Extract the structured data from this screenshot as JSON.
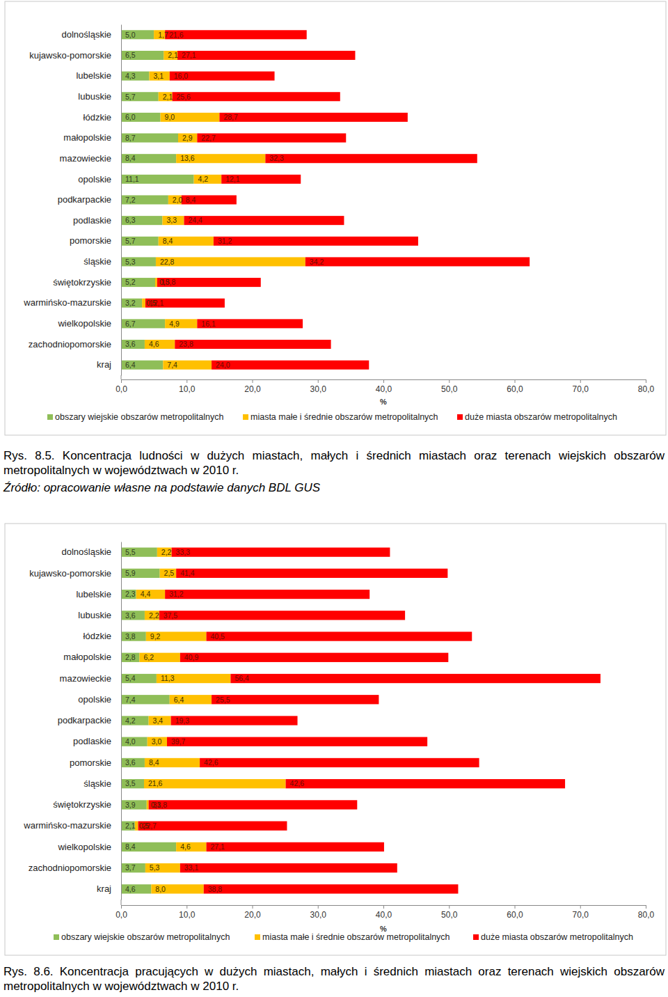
{
  "chart_data": [
    {
      "type": "bar",
      "orientation": "horizontal",
      "stacked": true,
      "data_labels": true,
      "grid": false,
      "legend": "bottom",
      "title": "Rys. 8.5. Koncentracja ludności w dużych miastach, małych i średnich miastach oraz terenach wiejskich obszarów metropolitalnych w województwach w 2010 r.",
      "subtitle": "Źródło: opracowanie własne na podstawie danych BDL GUS",
      "x_label": "%",
      "categories": [
        "dolnośląskie",
        "kujawsko-pomorskie",
        "lubelskie",
        "lubuskie",
        "łódzkie",
        "małopolskie",
        "mazowieckie",
        "opolskie",
        "podkarpackie",
        "podlaskie",
        "pomorskie",
        "śląskie",
        "świętokrzyskie",
        "warmińsko-mazurskie",
        "wielkopolskie",
        "zachodniopomorskie",
        "kraj"
      ],
      "xlim": [
        0,
        80
      ],
      "xticks": [
        {
          "value": 0,
          "label": "0,0"
        },
        {
          "value": 10,
          "label": "10,0"
        },
        {
          "value": 20,
          "label": "20,0"
        },
        {
          "value": 30,
          "label": "30,0"
        },
        {
          "value": 40,
          "label": "40,0"
        },
        {
          "value": 50,
          "label": "50,0"
        },
        {
          "value": 60,
          "label": "60,0"
        },
        {
          "value": 70,
          "label": "70,0"
        },
        {
          "value": 80,
          "label": "80,0"
        }
      ],
      "series": [
        {
          "name": "obszary wiejskie obszarów metropolitalnych",
          "color": "#8fbe58",
          "values": [
            5.0,
            6.5,
            4.3,
            5.7,
            6.0,
            8.7,
            8.4,
            11.1,
            7.2,
            6.3,
            5.7,
            5.3,
            5.2,
            3.2,
            6.7,
            3.6,
            6.4
          ],
          "value_labels": [
            "5,0",
            "6,5",
            "4,3",
            "5,7",
            "6,0",
            "8,7",
            "8,4",
            "11,1",
            "7,2",
            "6,3",
            "5,7",
            "5,3",
            "5,2",
            "3,2",
            "6,7",
            "3,6",
            "6,4"
          ]
        },
        {
          "name": "miasta małe i średnie obszarów metropolitalnych",
          "color": "#ffc000",
          "values": [
            1.7,
            2.1,
            3.1,
            2.1,
            9.0,
            2.9,
            13.6,
            4.2,
            2.0,
            3.3,
            8.4,
            22.8,
            0.3,
            0.5,
            4.9,
            4.6,
            7.4
          ],
          "value_labels": [
            "1,7",
            "2,1",
            "3,1",
            "2,1",
            "9,0",
            "2,9",
            "13,6",
            "4,2",
            "2,0",
            "3,3",
            "8,4",
            "22,8",
            "0,3",
            "0,5",
            "4,9",
            "4,6",
            "7,4"
          ]
        },
        {
          "name": "duże miasta obszarów metropolitalnych",
          "color": "#ff0000",
          "values": [
            21.6,
            27.1,
            16.0,
            25.6,
            28.7,
            22.7,
            32.3,
            12.1,
            8.4,
            24.4,
            31.2,
            34.2,
            15.8,
            12.1,
            16.1,
            23.8,
            24.0
          ],
          "value_labels": [
            "21,6",
            "27,1",
            "16,0",
            "25,6",
            "28,7",
            "22,7",
            "32,3",
            "12,1",
            "8,4",
            "24,4",
            "31,2",
            "34,2",
            "15,8",
            "12,1",
            "16,1",
            "23,8",
            "24,0"
          ]
        }
      ]
    },
    {
      "type": "bar",
      "orientation": "horizontal",
      "stacked": true,
      "data_labels": true,
      "grid": false,
      "legend": "bottom",
      "title": "Rys. 8.6. Koncentracja pracujących w dużych miastach, małych i średnich miastach oraz terenach wiejskich obszarów metropolitalnych w województwach w 2010 r.",
      "x_label": "%",
      "categories": [
        "dolnośląskie",
        "kujawsko-pomorskie",
        "lubelskie",
        "lubuskie",
        "łódzkie",
        "małopolskie",
        "mazowieckie",
        "opolskie",
        "podkarpackie",
        "podlaskie",
        "pomorskie",
        "śląskie",
        "świętokrzyskie",
        "warmińsko-mazurskie",
        "wielkopolskie",
        "zachodniopomorskie",
        "kraj"
      ],
      "xlim": [
        0,
        80
      ],
      "xticks": [
        {
          "value": 0,
          "label": "0,0"
        },
        {
          "value": 10,
          "label": "10,0"
        },
        {
          "value": 20,
          "label": "20,0"
        },
        {
          "value": 30,
          "label": "30,0"
        },
        {
          "value": 40,
          "label": "40,0"
        },
        {
          "value": 50,
          "label": "50,0"
        },
        {
          "value": 60,
          "label": "60,0"
        },
        {
          "value": 70,
          "label": "70,0"
        },
        {
          "value": 80,
          "label": "80,0"
        }
      ],
      "series": [
        {
          "name": "obszary wiejskie obszarów metropolitalnych",
          "color": "#8fbe58",
          "values": [
            5.5,
            5.9,
            2.3,
            3.6,
            3.8,
            2.8,
            5.4,
            7.4,
            4.2,
            4.0,
            3.6,
            3.5,
            3.9,
            2.1,
            8.4,
            3.7,
            4.6
          ],
          "value_labels": [
            "5,5",
            "5,9",
            "2,3",
            "3,6",
            "3,8",
            "2,8",
            "5,4",
            "7,4",
            "4,2",
            "4,0",
            "3,6",
            "3,5",
            "3,9",
            "2,1",
            "8,4",
            "3,7",
            "4,6"
          ]
        },
        {
          "name": "miasta małe i średnie obszarów metropolitalnych",
          "color": "#ffc000",
          "values": [
            2.2,
            2.5,
            4.4,
            2.2,
            9.2,
            6.2,
            11.3,
            6.4,
            3.4,
            3.0,
            8.4,
            21.6,
            0.3,
            0.5,
            4.6,
            5.3,
            8.0
          ],
          "value_labels": [
            "2,2",
            "2,5",
            "4,4",
            "2,2",
            "9,2",
            "6,2",
            "11,3",
            "6,4",
            "3,4",
            "3,0",
            "8,4",
            "21,6",
            "0,3",
            "0,5",
            "4,6",
            "5,3",
            "8,0"
          ]
        },
        {
          "name": "duże miasta obszarów metropolitalnych",
          "color": "#ff0000",
          "values": [
            33.3,
            41.4,
            31.2,
            37.5,
            40.5,
            40.9,
            56.4,
            25.5,
            19.3,
            39.7,
            42.6,
            42.6,
            31.8,
            22.7,
            27.1,
            33.1,
            38.8
          ],
          "value_labels": [
            "33,3",
            "41,4",
            "31,2",
            "37,5",
            "40,5",
            "40,9",
            "56,4",
            "25,5",
            "19,3",
            "39,7",
            "42,6",
            "42,6",
            "31,8",
            "22,7",
            "27,1",
            "33,1",
            "38,8"
          ]
        }
      ]
    }
  ]
}
